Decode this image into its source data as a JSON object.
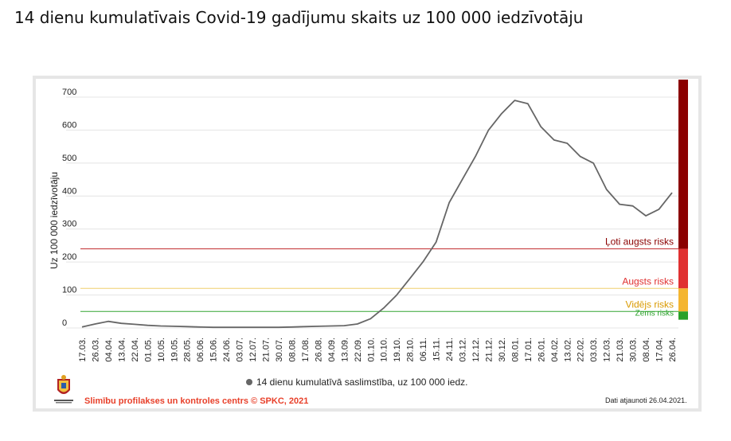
{
  "page": {
    "title": "14 dienu kumulatīvais Covid-19 gadījumu skaits uz 100 000 iedzīvotāju"
  },
  "footer": {
    "source": "Slimību profilakses un kontroles centrs © SPKC, 2021",
    "updated": "Dati atjaunoti 26.04.2021."
  },
  "chart_data": {
    "type": "line",
    "title": "",
    "ylabel": "Uz 100 000 iedzīvotāju",
    "xlabel": "",
    "ylim": [
      0,
      700
    ],
    "yticks": [
      0,
      100,
      200,
      300,
      400,
      500,
      600,
      700
    ],
    "grid": true,
    "legend_position": "bottom",
    "categories": [
      "17.03.",
      "26.03.",
      "04.04.",
      "13.04.",
      "22.04.",
      "01.05.",
      "10.05.",
      "19.05.",
      "28.05.",
      "06.06.",
      "15.06.",
      "24.06.",
      "03.07.",
      "12.07.",
      "21.07.",
      "30.07.",
      "08.08.",
      "17.08.",
      "26.08.",
      "04.09.",
      "13.09.",
      "22.09.",
      "01.10.",
      "10.10.",
      "19.10.",
      "28.10.",
      "06.11.",
      "15.11.",
      "24.11.",
      "03.12.",
      "12.12.",
      "21.12.",
      "30.12.",
      "08.01.",
      "17.01.",
      "26.01.",
      "04.02.",
      "13.02.",
      "22.02.",
      "03.03.",
      "12.03.",
      "21.03.",
      "30.03.",
      "08.04.",
      "17.04.",
      "26.04."
    ],
    "series": [
      {
        "name": "14 dienu kumulatīvā saslimstība, uz 100 000 iedz.",
        "color": "#666666",
        "values": [
          3,
          12,
          20,
          14,
          11,
          8,
          6,
          5,
          4,
          3,
          2,
          2,
          2,
          2,
          2,
          2,
          3,
          4,
          5,
          6,
          7,
          12,
          28,
          60,
          100,
          150,
          200,
          260,
          380,
          450,
          520,
          600,
          650,
          690,
          680,
          610,
          570,
          560,
          520,
          500,
          420,
          375,
          370,
          340,
          360,
          410
        ]
      }
    ],
    "thresholds": [
      {
        "label": "Ļoti augsts risks",
        "value": 240,
        "color": "#c0282d"
      },
      {
        "label": "Augsts risks",
        "value": 120,
        "color": "#f0cf6e"
      },
      {
        "label": "Vidējs risks",
        "value": 50,
        "color": "#33a532"
      },
      {
        "label": "Zems risks",
        "value": 0,
        "color": "#33a532"
      }
    ],
    "risk_bands": [
      {
        "label": "Ļoti augsts risks",
        "from": 240,
        "to": 780,
        "color": "#8b0000",
        "text_color": "#8b0000"
      },
      {
        "label": "Augsts risks",
        "from": 120,
        "to": 240,
        "color": "#e03131",
        "text_color": "#e03131"
      },
      {
        "label": "Vidējs risks",
        "from": 50,
        "to": 120,
        "color": "#f4b530",
        "text_color": "#d99a00"
      },
      {
        "label": "Zems risks",
        "from": 25,
        "to": 50,
        "color": "#2aa12a",
        "text_color": "#2aa12a"
      }
    ]
  }
}
